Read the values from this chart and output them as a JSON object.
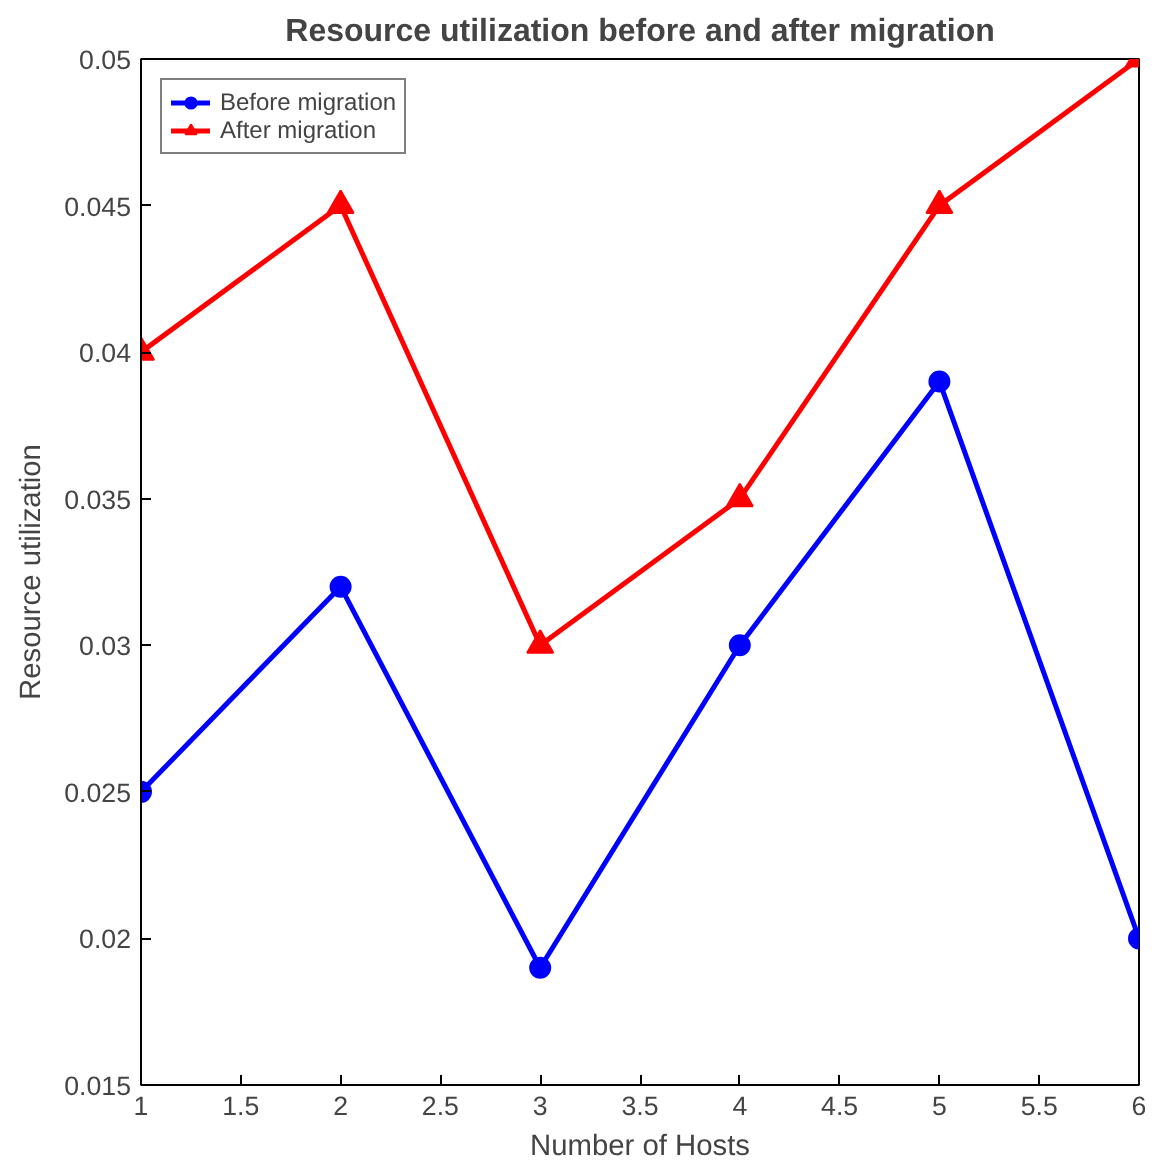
{
  "chart_data": {
    "type": "line",
    "title": "Resource utilization before and after migration",
    "xlabel": "Number of Hosts",
    "ylabel": "Resource utilization",
    "x": [
      1,
      2,
      3,
      4,
      5,
      6
    ],
    "series": [
      {
        "name": "Before migration",
        "color": "#0000ff",
        "marker": "circle",
        "values": [
          0.025,
          0.032,
          0.019,
          0.03,
          0.039,
          0.02
        ]
      },
      {
        "name": "After migration",
        "color": "#ff0000",
        "marker": "triangle",
        "values": [
          0.04,
          0.045,
          0.03,
          0.035,
          0.045,
          0.05
        ]
      }
    ],
    "xlim": [
      1,
      6
    ],
    "xticks": [
      1,
      1.5,
      2,
      2.5,
      3,
      3.5,
      4,
      4.5,
      5,
      5.5,
      6
    ],
    "ylim": [
      0.015,
      0.05
    ],
    "yticks": [
      0.015,
      0.02,
      0.025,
      0.03,
      0.035,
      0.04,
      0.045,
      0.05
    ],
    "grid": false,
    "legend": "top left",
    "line_style": "solid"
  }
}
